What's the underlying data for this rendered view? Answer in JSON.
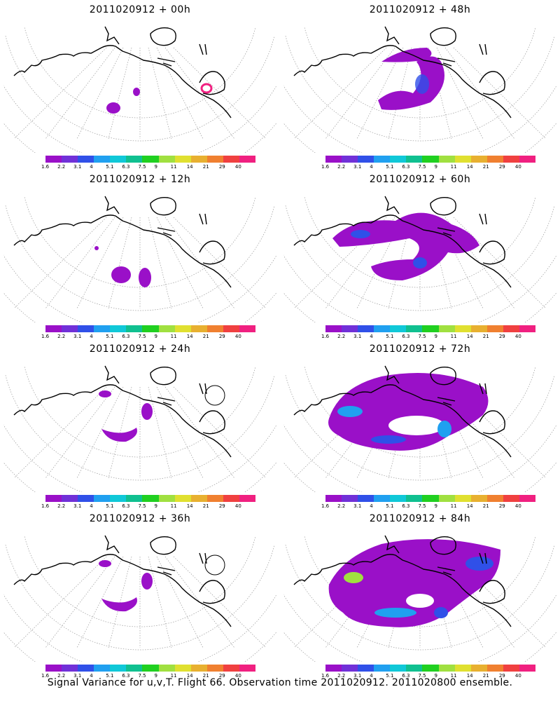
{
  "panels": [
    {
      "title": "2011020912 + 00h",
      "level": 0
    },
    {
      "title": "2011020912 + 48h",
      "level": 3
    },
    {
      "title": "2011020912 + 12h",
      "level": 1
    },
    {
      "title": "2011020912 + 60h",
      "level": 4
    },
    {
      "title": "2011020912 + 24h",
      "level": 2
    },
    {
      "title": "2011020912 + 72h",
      "level": 5
    },
    {
      "title": "2011020912 + 36h",
      "level": 2
    },
    {
      "title": "2011020912 + 84h",
      "level": 6
    }
  ],
  "colorbar": {
    "colors": [
      "#9a10c8",
      "#7030d8",
      "#3050e8",
      "#20a0f0",
      "#10c8d8",
      "#10c090",
      "#20d020",
      "#a0e040",
      "#e0e030",
      "#e8b030",
      "#f08030",
      "#f04040",
      "#f02080"
    ],
    "labels": [
      "1.6",
      "2.2",
      "3.1",
      "4",
      "5.1",
      "6.3",
      "7.5",
      "9",
      "11",
      "14",
      "21",
      "29",
      "40"
    ]
  },
  "caption": "Signal Variance for u,v,T. Flight 66. Observation time 2011020912. 2011020800 ensemble."
}
